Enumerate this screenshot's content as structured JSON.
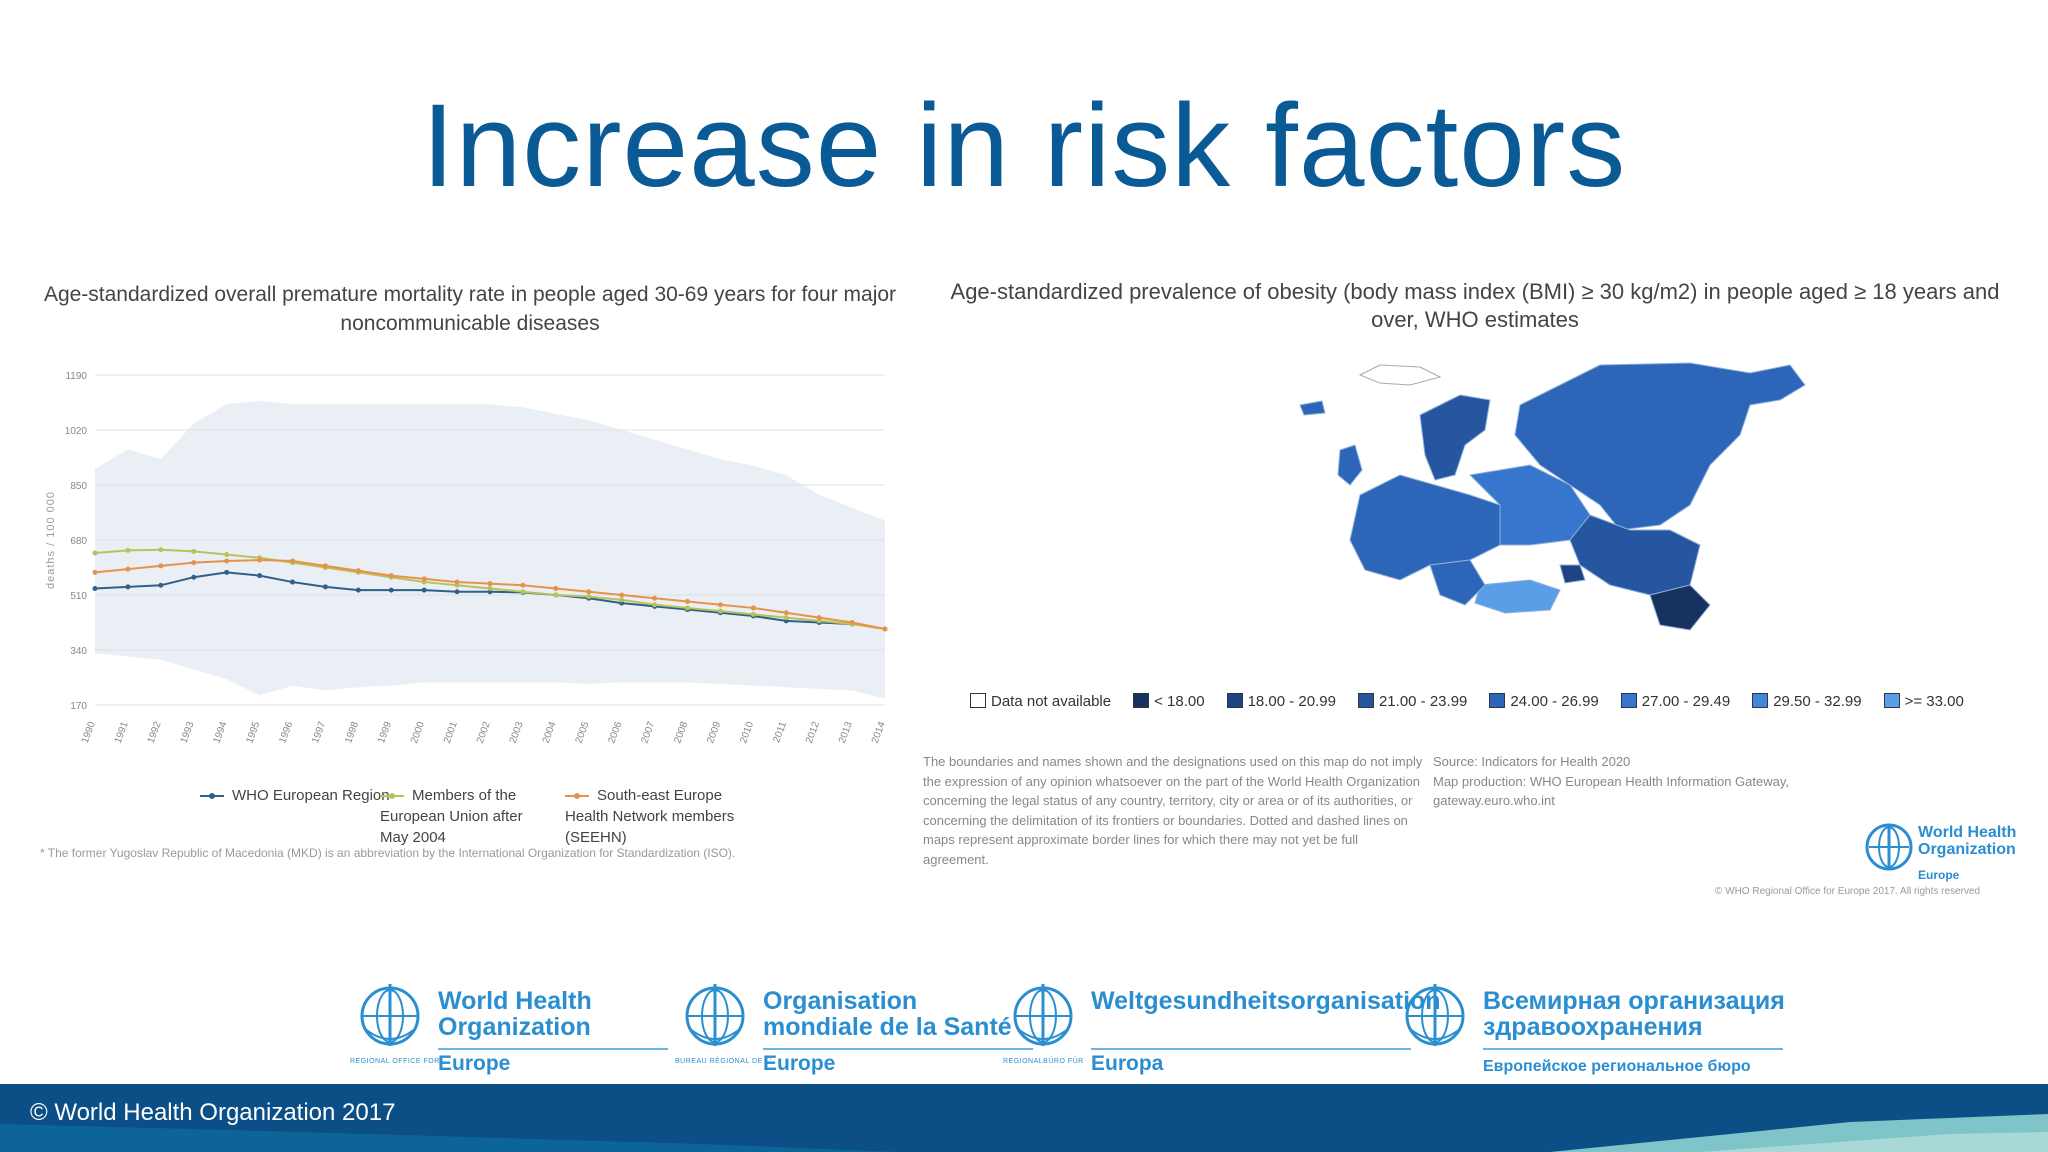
{
  "slide": {
    "title": "Increase in risk factors",
    "footer": "© World Health Organization 2017"
  },
  "colors": {
    "title": "#0a5a96",
    "footer_dark": "#0b4f86",
    "footer_light": "#7fc4c9",
    "who_blue": "#2a8ed1"
  },
  "chart_data": [
    {
      "type": "line",
      "title": "Age-standardized overall premature mortality rate in people aged 30-69 years for four major noncommunicable diseases",
      "ylabel": "deaths / 100 000",
      "xlabel": "",
      "x": [
        "1990",
        "1991",
        "1992",
        "1993",
        "1994",
        "1995",
        "1996",
        "1997",
        "1998",
        "1999",
        "2000",
        "2001",
        "2002",
        "2003",
        "2004",
        "2005",
        "2006",
        "2007",
        "2008",
        "2009",
        "2010",
        "2011",
        "2012",
        "2013",
        "2014"
      ],
      "ytick_labels": [
        "170",
        "340",
        "510",
        "680",
        "850",
        "1020",
        "1190"
      ],
      "ylim": [
        170,
        1190
      ],
      "series": [
        {
          "name": "WHO European Region",
          "color": "#2f5f8a",
          "values": [
            530,
            535,
            540,
            565,
            580,
            570,
            550,
            535,
            525,
            525,
            525,
            520,
            520,
            518,
            510,
            500,
            485,
            475,
            465,
            455,
            445,
            430,
            425,
            420,
            null
          ]
        },
        {
          "name": "Members of the European Union after May 2004",
          "color": "#b7c35a",
          "values": [
            640,
            648,
            650,
            645,
            635,
            625,
            610,
            595,
            580,
            565,
            550,
            540,
            530,
            520,
            510,
            505,
            495,
            480,
            470,
            460,
            450,
            440,
            430,
            420,
            405
          ]
        },
        {
          "name": "South-east Europe Health Network members (SEEHN)",
          "color": "#e8914a",
          "values": [
            580,
            590,
            600,
            610,
            615,
            618,
            615,
            600,
            585,
            570,
            560,
            550,
            545,
            540,
            530,
            520,
            510,
            500,
            490,
            480,
            470,
            455,
            440,
            425,
            405
          ]
        }
      ],
      "band": {
        "upper": [
          900,
          960,
          930,
          1040,
          1100,
          1110,
          1100,
          1100,
          1100,
          1100,
          1100,
          1100,
          1100,
          1090,
          1070,
          1050,
          1020,
          990,
          960,
          930,
          910,
          880,
          820,
          780,
          740
        ],
        "lower": [
          330,
          320,
          310,
          280,
          250,
          200,
          230,
          215,
          225,
          230,
          240,
          240,
          240,
          240,
          240,
          235,
          240,
          240,
          240,
          235,
          230,
          225,
          220,
          215,
          190
        ]
      },
      "legend_position": "bottom",
      "grid": true,
      "footnote": "* The former Yugoslav Republic of Macedonia (MKD) is an abbreviation by the International Organization for Standardization (ISO)."
    },
    {
      "type": "map",
      "title": "Age-standardized prevalence of obesity (body mass index (BMI) ≥ 30 kg/m2) in people aged ≥ 18 years and over, WHO estimates",
      "legend": [
        {
          "label": "Data not available",
          "color": "#ffffff"
        },
        {
          "label": "< 18.00",
          "color": "#17325e"
        },
        {
          "label": "18.00 - 20.99",
          "color": "#1e4481"
        },
        {
          "label": "21.00 - 23.99",
          "color": "#2656a0"
        },
        {
          "label": "24.00 - 26.99",
          "color": "#2d66b9"
        },
        {
          "label": "27.00 - 29.49",
          "color": "#3676cc"
        },
        {
          "label": "29.50 - 32.99",
          "color": "#4386db"
        },
        {
          "label": ">= 33.00",
          "color": "#5a9ee8"
        }
      ],
      "disclaimer": "The boundaries and names shown and the designations used on this map do not imply the expression of any opinion whatsoever on the part of the World Health Organization concerning the legal status of any country, territory, city or area or of its authorities, or concerning the delimitation of its frontiers or boundaries. Dotted and dashed lines on maps represent approximate border lines for which there may not yet be full agreement.",
      "source": "Source: Indicators for Health 2020\nMap production: WHO European Health Information Gateway, gateway.euro.who.int",
      "logo_text": "World Health Organization",
      "logo_sub": "Europe",
      "copyright": "© WHO Regional Office for Europe 2017. All rights reserved"
    }
  ],
  "logos": [
    {
      "line1": "World Health",
      "line2": "Organization",
      "region_label": "REGIONAL OFFICE FOR",
      "region": "Europe"
    },
    {
      "line1": "Organisation",
      "line2": "mondiale de la Santé",
      "region_label": "BUREAU RÉGIONAL DE L'",
      "region": "Europe"
    },
    {
      "line1": "Weltgesundheitsorganisation",
      "line2": "",
      "region_label": "REGIONALBÜRO FÜR",
      "region": "Europa"
    },
    {
      "line1": "Всемирная организация",
      "line2": "здравоохранения",
      "region_label": "",
      "region": "Европейское региональное бюро"
    }
  ]
}
